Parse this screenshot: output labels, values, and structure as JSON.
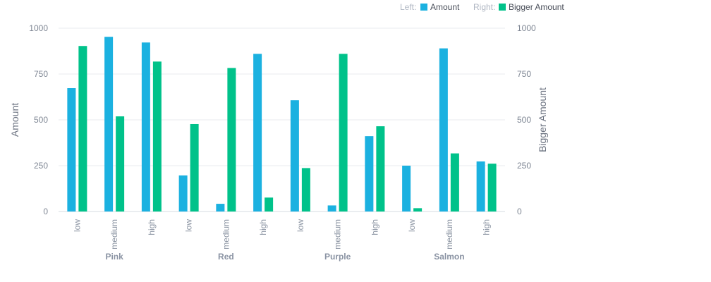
{
  "colors": {
    "left_series": "#1bb1e0",
    "right_series": "#00c28a"
  },
  "legend": {
    "left_prefix": "Left:",
    "right_prefix": "Right:",
    "left_label": "Amount",
    "right_label": "Bigger Amount"
  },
  "chart_data": {
    "type": "bar",
    "groups": [
      "Pink",
      "Red",
      "Purple",
      "Salmon"
    ],
    "subcategories": [
      "low",
      "medium",
      "high"
    ],
    "categories": [
      "low",
      "medium",
      "high",
      "low",
      "medium",
      "high",
      "low",
      "medium",
      "high",
      "low",
      "medium",
      "high"
    ],
    "series": [
      {
        "name": "Amount",
        "axis": "left",
        "values": [
          673,
          953,
          922,
          197,
          42,
          860,
          607,
          33,
          411,
          250,
          890,
          273
        ]
      },
      {
        "name": "Bigger Amount",
        "axis": "right",
        "values": [
          903,
          519,
          818,
          477,
          783,
          76,
          237,
          860,
          465,
          18,
          317,
          261
        ]
      }
    ],
    "ylabel_left": "Amount",
    "ylabel_right": "Bigger Amount",
    "ylim_left": [
      0,
      1000
    ],
    "ylim_right": [
      0,
      1000
    ],
    "yticks": [
      "0",
      "250",
      "500",
      "750",
      "1000"
    ],
    "grid": true,
    "legend_position": "top-right"
  }
}
